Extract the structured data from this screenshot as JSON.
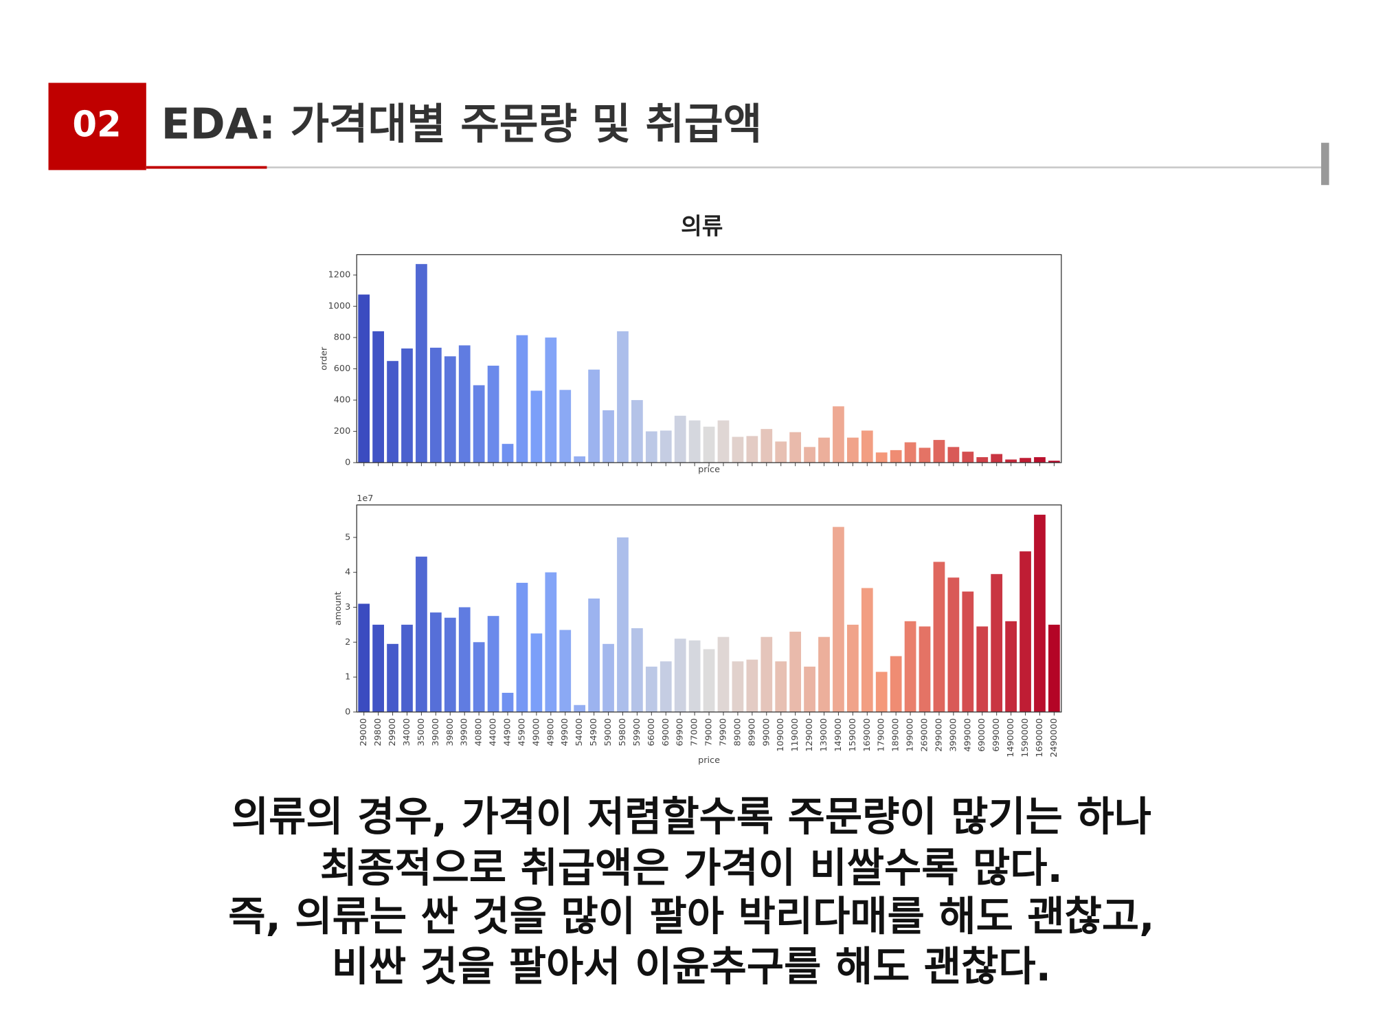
{
  "header": {
    "number": "02",
    "title": "EDA: 가격대별 주문량 및 취급액"
  },
  "figure_title": "의류",
  "palette": [
    "#3b4cc0",
    "#7b9ff9",
    "#dddcdc",
    "#f4987a",
    "#b40426"
  ],
  "chart_data": [
    {
      "type": "bar",
      "ylabel": "order",
      "xlabel": "price",
      "values": [
        1075,
        840,
        650,
        730,
        1270,
        735,
        680,
        750,
        495,
        620,
        120,
        815,
        460,
        800,
        465,
        40,
        595,
        335,
        840,
        400,
        200,
        205,
        300,
        270,
        230,
        270,
        165,
        170,
        215,
        135,
        195,
        100,
        160,
        360,
        160,
        205,
        65,
        80,
        130,
        95,
        145,
        100,
        70,
        35,
        55,
        20,
        30,
        35,
        12
      ],
      "ylim": [
        0,
        1330
      ],
      "yticks": [
        0,
        200,
        400,
        600,
        800,
        1000,
        1200
      ]
    },
    {
      "type": "bar",
      "ylabel": "amount",
      "xlabel": "price",
      "offset_label": "1e7",
      "categories": [
        "29000",
        "29800",
        "29900",
        "34000",
        "35000",
        "39000",
        "39800",
        "39900",
        "40800",
        "44000",
        "44900",
        "45900",
        "49000",
        "49800",
        "49900",
        "54000",
        "54900",
        "59000",
        "59800",
        "59900",
        "66000",
        "69000",
        "69900",
        "77000",
        "79000",
        "79900",
        "89000",
        "89900",
        "99000",
        "109000",
        "119000",
        "129000",
        "139000",
        "149000",
        "159000",
        "169000",
        "179000",
        "189000",
        "199000",
        "269000",
        "299000",
        "399000",
        "499000",
        "690000",
        "699000",
        "1490000",
        "1590000",
        "1690000",
        "2490000"
      ],
      "values": [
        3.1,
        2.5,
        1.95,
        2.5,
        4.45,
        2.85,
        2.7,
        3.0,
        2.0,
        2.75,
        0.55,
        3.7,
        2.25,
        4.0,
        2.35,
        0.2,
        3.25,
        1.95,
        5.0,
        2.4,
        1.3,
        1.45,
        2.1,
        2.05,
        1.8,
        2.15,
        1.45,
        1.5,
        2.15,
        1.45,
        2.3,
        1.3,
        2.15,
        5.3,
        2.5,
        3.55,
        1.15,
        1.6,
        2.6,
        2.45,
        4.3,
        3.85,
        3.45,
        2.45,
        3.95,
        2.6,
        4.6,
        5.65,
        2.5
      ],
      "ylim": [
        0,
        5.93
      ],
      "yticks": [
        0,
        1,
        2,
        3,
        4,
        5
      ]
    }
  ],
  "body": [
    "의류의 경우, 가격이 저렴할수록 주문량이 많기는 하나",
    "최종적으로 취급액은 가격이 비쌀수록 많다.",
    "즉, 의류는 싼 것을 많이 팔아 박리다매를 해도 괜찮고,",
    "비싼 것을 팔아서 이윤추구를 해도 괜찮다."
  ]
}
